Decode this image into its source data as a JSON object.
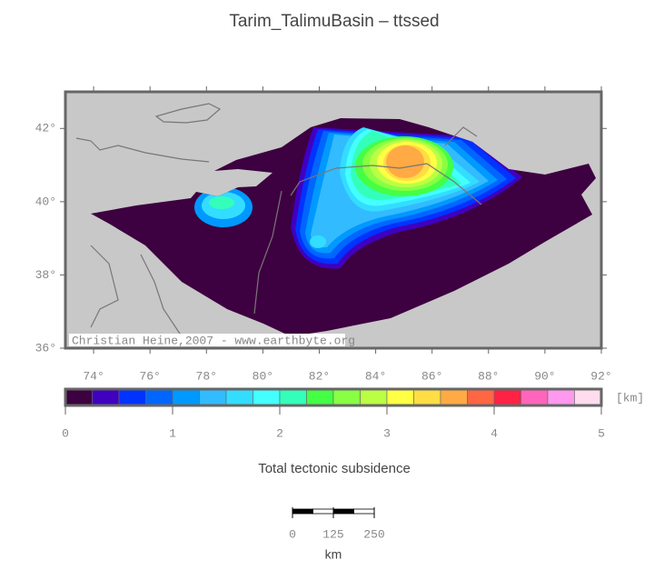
{
  "title": "Tarim_TalimuBasin – ttssed",
  "map": {
    "lonlim": [
      73,
      92
    ],
    "latlim": [
      36,
      43
    ],
    "lon_ticks": [
      {
        "value": 74,
        "label": "74°"
      },
      {
        "value": 76,
        "label": "76°"
      },
      {
        "value": 78,
        "label": "78°"
      },
      {
        "value": 80,
        "label": "80°"
      },
      {
        "value": 82,
        "label": "82°"
      },
      {
        "value": 84,
        "label": "84°"
      },
      {
        "value": 86,
        "label": "86°"
      },
      {
        "value": 88,
        "label": "88°"
      },
      {
        "value": 90,
        "label": "90°"
      },
      {
        "value": 92,
        "label": "92°"
      }
    ],
    "lat_ticks": [
      {
        "value": 42,
        "label": "42°"
      },
      {
        "value": 40,
        "label": "40°"
      },
      {
        "value": 38,
        "label": "38°"
      },
      {
        "value": 36,
        "label": "36°"
      }
    ],
    "credit": "Christian Heine,2007 - www.earthbyte.org"
  },
  "colorbar": {
    "lim": [
      0,
      5
    ],
    "ticks": [
      0,
      1,
      2,
      3,
      4,
      5
    ],
    "unit": "[km]",
    "label": "Total tectonic subsidence",
    "colors": [
      "#3d0040",
      "#4000c0",
      "#0033ff",
      "#0066ff",
      "#0099ff",
      "#33bbff",
      "#33ddff",
      "#44ffff",
      "#33ffbb",
      "#44ff44",
      "#88ff44",
      "#bbff44",
      "#ffff44",
      "#ffdd44",
      "#ffaa44",
      "#ff6644",
      "#ff2244",
      "#ff66bb",
      "#ff99ee",
      "#ffddee"
    ]
  },
  "scale_bar": {
    "ticks": [
      0,
      125,
      250
    ],
    "unit": "km"
  }
}
